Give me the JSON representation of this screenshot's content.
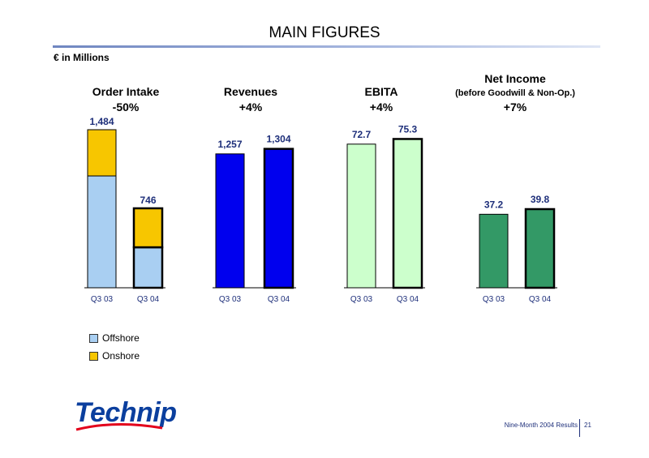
{
  "header": {
    "title": "MAIN FIGURES",
    "units": "€  in Millions"
  },
  "legend": [
    {
      "label": "Offshore",
      "color": "#a9cff2"
    },
    {
      "label": "Onshore",
      "color": "#f7c600"
    }
  ],
  "chart_data": [
    {
      "type": "bar",
      "stacked": true,
      "title": "Order Intake",
      "subtitle": "-50%",
      "categories": [
        "Q3 03",
        "Q3 04"
      ],
      "totals": [
        1484,
        746
      ],
      "total_labels": [
        "1,484",
        "746"
      ],
      "series": [
        {
          "name": "Offshore",
          "values": [
            1050,
            380
          ],
          "color": "#a9cff2"
        },
        {
          "name": "Onshore",
          "values": [
            434,
            366
          ],
          "color": "#f7c600"
        }
      ],
      "ylim": [
        0,
        1484
      ]
    },
    {
      "type": "bar",
      "title": "Revenues",
      "subtitle": "+4%",
      "categories": [
        "Q3 03",
        "Q3 04"
      ],
      "values": [
        1257,
        1304
      ],
      "value_labels": [
        "1,257",
        "1,304"
      ],
      "color": "#0000ee",
      "ylim": [
        0,
        1484
      ]
    },
    {
      "type": "bar",
      "title": "EBITA",
      "subtitle": "+4%",
      "categories": [
        "Q3 03",
        "Q3 04"
      ],
      "values": [
        72.7,
        75.3
      ],
      "value_labels": [
        "72.7",
        "75.3"
      ],
      "color": "#ccffcc",
      "ylim": [
        0,
        80
      ]
    },
    {
      "type": "bar",
      "title": "Net Income",
      "subtitle2": "(before Goodwill & Non-Op.)",
      "subtitle": "+7%",
      "categories": [
        "Q3 03",
        "Q3 04"
      ],
      "values": [
        37.2,
        39.8
      ],
      "value_labels": [
        "37.2",
        "39.8"
      ],
      "color": "#339966",
      "ylim": [
        0,
        80
      ]
    }
  ],
  "logo": {
    "text": "Technip"
  },
  "footer": {
    "caption": "Nine-Month 2004 Results",
    "page": "21"
  }
}
